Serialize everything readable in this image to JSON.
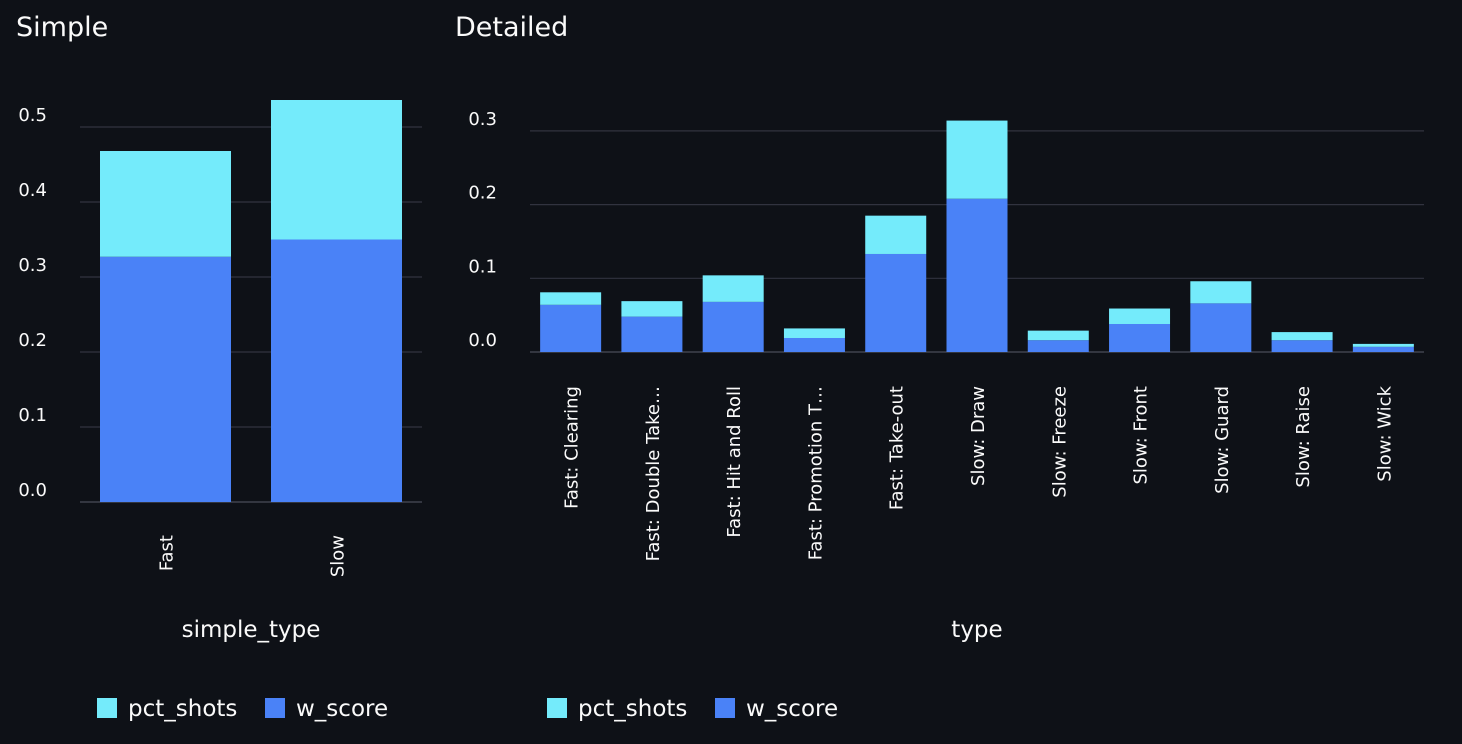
{
  "chart_data": [
    {
      "type": "bar",
      "stacked": true,
      "title": "Simple",
      "xlabel": "simple_type",
      "ylabel": "",
      "categories": [
        "Fast",
        "Slow"
      ],
      "series": [
        {
          "name": "w_score",
          "color": "#4a82f7",
          "values": [
            0.327,
            0.35
          ]
        },
        {
          "name": "pct_shots",
          "color": "#74ebfb",
          "values": [
            0.141,
            0.186
          ]
        }
      ],
      "ylim": [
        0,
        0.535
      ],
      "yticks": [
        "0.0",
        "0.1",
        "0.2",
        "0.3",
        "0.4",
        "0.5"
      ],
      "grid": true,
      "legend": "bottom"
    },
    {
      "type": "bar",
      "stacked": true,
      "title": "Detailed",
      "xlabel": "type",
      "ylabel": "",
      "categories": [
        "Fast: Clearing",
        "Fast: Double Take…",
        "Fast: Hit and Roll",
        "Fast: Promotion T…",
        "Fast: Take-out",
        "Slow: Draw",
        "Slow: Freeze",
        "Slow: Front",
        "Slow: Guard",
        "Slow: Raise",
        "Slow: Wick"
      ],
      "series": [
        {
          "name": "w_score",
          "color": "#4a82f7",
          "values": [
            0.064,
            0.048,
            0.068,
            0.019,
            0.133,
            0.208,
            0.016,
            0.038,
            0.066,
            0.016,
            0.007
          ]
        },
        {
          "name": "pct_shots",
          "color": "#74ebfb",
          "values": [
            0.017,
            0.021,
            0.036,
            0.013,
            0.052,
            0.106,
            0.013,
            0.021,
            0.03,
            0.011,
            0.004
          ]
        }
      ],
      "ylim": [
        0,
        0.313
      ],
      "yticks": [
        "0.0",
        "0.1",
        "0.2",
        "0.3"
      ],
      "grid": true,
      "legend": "bottom"
    }
  ]
}
